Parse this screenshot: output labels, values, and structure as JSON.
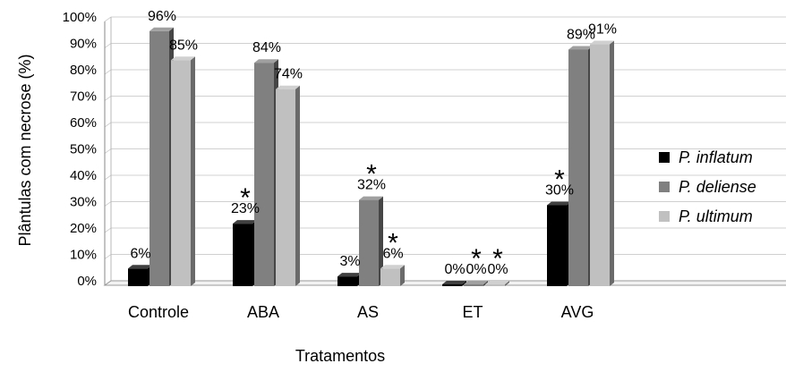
{
  "chart_data": {
    "type": "bar",
    "xlabel": "Tratamentos",
    "ylabel": "Plântulas com necrose (%)",
    "ylim": [
      0,
      100
    ],
    "yticks": [
      "0%",
      "10%",
      "20%",
      "30%",
      "40%",
      "50%",
      "60%",
      "70%",
      "80%",
      "90%",
      "100%"
    ],
    "grid": true,
    "legend_position": "right",
    "categories": [
      "Controle",
      "ABA",
      "AS",
      "ET",
      "AVG"
    ],
    "series": [
      {
        "name": "P. inflatum",
        "color": "#000000",
        "values": [
          6,
          23,
          3,
          0,
          30
        ],
        "labels": [
          "6%",
          "23%",
          "3%",
          "0%",
          "30%"
        ],
        "significant": [
          false,
          true,
          false,
          false,
          true
        ]
      },
      {
        "name": "P. deliense",
        "color": "#808080",
        "values": [
          96,
          84,
          32,
          0,
          89
        ],
        "labels": [
          "96%",
          "84%",
          "32%",
          "0%",
          "89%"
        ],
        "significant": [
          false,
          false,
          true,
          true,
          false
        ]
      },
      {
        "name": "P. ultimum",
        "color": "#c0c0c0",
        "values": [
          85,
          74,
          6,
          0,
          91
        ],
        "labels": [
          "85%",
          "74%",
          "6%",
          "0%",
          "91%"
        ],
        "significant": [
          false,
          false,
          true,
          true,
          false
        ]
      }
    ],
    "significance_marker": "*"
  }
}
